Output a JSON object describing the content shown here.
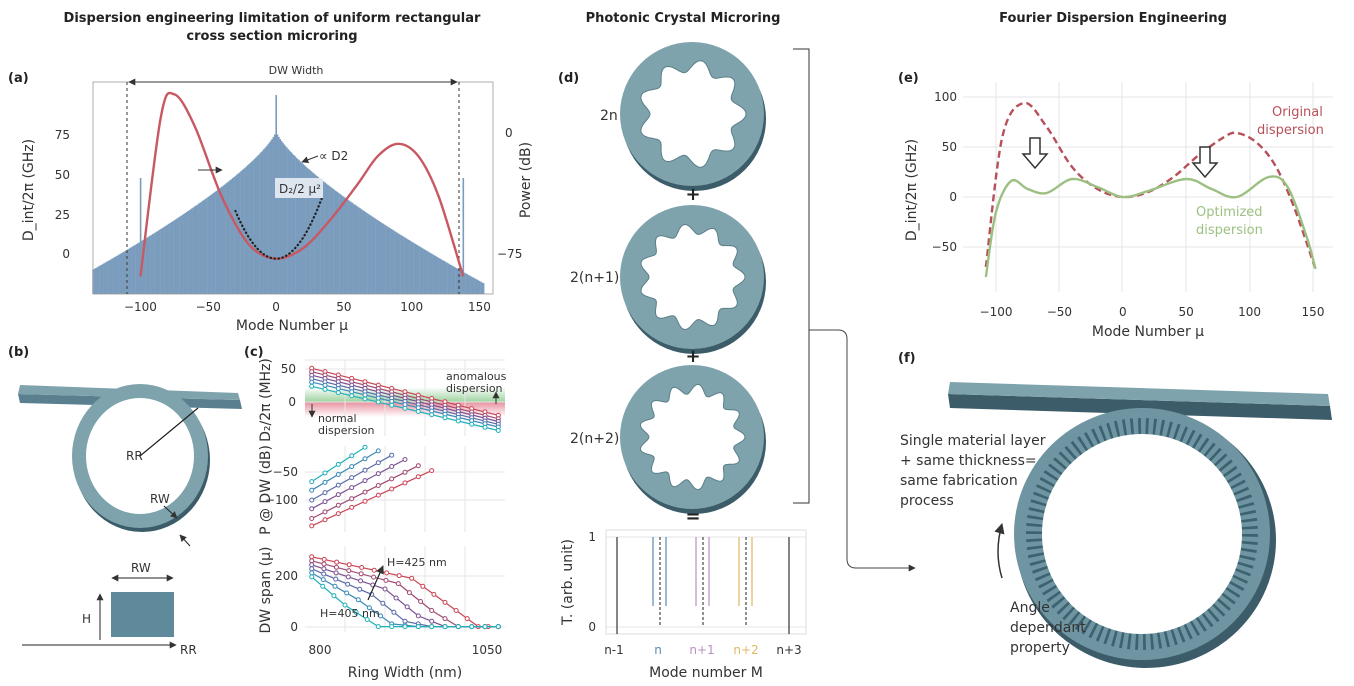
{
  "titles": {
    "left": [
      "Dispersion engineering limitation of uniform rectangular",
      "cross section microring"
    ],
    "middle": "Photonic Crystal Microring",
    "right": "Fourier Dispersion Engineering"
  },
  "labels": {
    "a": "(a)",
    "b": "(b)",
    "c": "(c)",
    "d": "(d)",
    "e": "(e)",
    "f": "(f)"
  },
  "panel_a": {
    "xlabel": "Mode Number μ",
    "ylabel_left": "D_int/2π (GHz)",
    "ylabel_right": "Power (dB)",
    "xticks": [
      "−100",
      "−50",
      "0",
      "50",
      "100",
      "150"
    ],
    "yticks_left": [
      "0",
      "25",
      "50",
      "75"
    ],
    "yticks_right": [
      "0",
      "−75"
    ],
    "dw_width": "DW Width",
    "prop_d2": "∝ D2",
    "d2_label": "D₂/2 μ²"
  },
  "panel_b": {
    "rr": "RR",
    "rw": "RW",
    "rw_bottom": "RW",
    "h": "H",
    "rr_bottom": "RR"
  },
  "panel_c": {
    "ylabel_top": "D₂/2π (MHz)",
    "ylabel_mid": "P @ DW (dB)",
    "ylabel_bot": "DW span (μ)",
    "xlabel": "Ring Width (nm)",
    "xticks": [
      "800",
      "1050"
    ],
    "yticks_top": [
      "50",
      "0"
    ],
    "yticks_mid": [
      "−50",
      "−100"
    ],
    "yticks_bot": [
      "200",
      "0"
    ],
    "anomalous": [
      "anomalous",
      "dispersion"
    ],
    "normal": [
      "normal",
      "dispersion"
    ],
    "h425": "H=425 nm",
    "h405": "H=405 nm",
    "series_colors": [
      "#cc4455",
      "#a04870",
      "#7a5090",
      "#5a6aa8",
      "#3a8ab8",
      "#20b0b8"
    ]
  },
  "panel_d": {
    "ring_labels": [
      "2n",
      "2(n+1)",
      "2(n+2)"
    ],
    "ring_label_colors": [
      "#5a88b8",
      "#b890c0",
      "#e0b860"
    ],
    "plus": "+",
    "equals": "=",
    "ylabel": "T. (arb. unit)",
    "xlabel": "Mode number M",
    "yticks": [
      "1",
      "0"
    ],
    "xticks": [
      "n-1",
      "n",
      "n+1",
      "n+2",
      "n+3"
    ],
    "xtick_colors": [
      "#333333",
      "#5a88b8",
      "#b890c0",
      "#e0b860",
      "#333333"
    ]
  },
  "panel_e": {
    "xlabel": "Mode Number μ",
    "ylabel": "D_int/2π (GHz)",
    "xticks": [
      "−100",
      "−50",
      "0",
      "50",
      "100",
      "150"
    ],
    "yticks": [
      "100",
      "50",
      "0",
      "−50"
    ],
    "original": [
      "Original",
      "dispersion"
    ],
    "optimized": [
      "Optimized",
      "dispersion"
    ],
    "original_color": "#b8505a",
    "optimized_color": "#9cc082"
  },
  "panel_f": {
    "text1": [
      "Single material layer",
      "+ same thickness=",
      "same fabrication",
      "process"
    ],
    "text2": [
      "Angle",
      "dependant",
      "property"
    ]
  },
  "colors": {
    "ring": "#7fa3ad",
    "bar": "#7b9cbd",
    "red": "#c85862"
  },
  "chart_data": [
    {
      "type": "line",
      "id": "a",
      "xlabel": "Mode Number μ",
      "ylabel": "D_int/2π (GHz)",
      "xlim": [
        -135,
        160
      ],
      "ylim": [
        -20,
        100
      ],
      "series": [
        {
          "values": [
            [
              -100,
              -10
            ],
            [
              -85,
              80
            ],
            [
              -75,
              93
            ],
            [
              -60,
              75
            ],
            [
              -40,
              35
            ],
            [
              -20,
              8
            ],
            [
              0,
              0
            ],
            [
              20,
              6
            ],
            [
              40,
              22
            ],
            [
              60,
              42
            ],
            [
              75,
              58
            ],
            [
              90,
              65
            ],
            [
              105,
              58
            ],
            [
              120,
              35
            ],
            [
              138,
              -10
            ]
          ]
        }
      ]
    },
    {
      "type": "line",
      "id": "e",
      "xlabel": "Mode Number μ",
      "ylabel": "D_int/2π (GHz)",
      "xlim": [
        -112,
        158
      ],
      "ylim": [
        -85,
        105
      ],
      "series": [
        {
          "name": "Original dispersion",
          "values": [
            [
              -108,
              -70
            ],
            [
              -95,
              60
            ],
            [
              -78,
              94
            ],
            [
              -60,
              70
            ],
            [
              -40,
              30
            ],
            [
              -20,
              8
            ],
            [
              0,
              0
            ],
            [
              20,
              5
            ],
            [
              40,
              20
            ],
            [
              60,
              42
            ],
            [
              80,
              60
            ],
            [
              90,
              64
            ],
            [
              105,
              55
            ],
            [
              120,
              32
            ],
            [
              135,
              -10
            ],
            [
              152,
              -72
            ]
          ]
        },
        {
          "name": "Optimized dispersion",
          "values": [
            [
              -108,
              -80
            ],
            [
              -100,
              -15
            ],
            [
              -88,
              16
            ],
            [
              -75,
              8
            ],
            [
              -60,
              4
            ],
            [
              -40,
              18
            ],
            [
              -20,
              10
            ],
            [
              0,
              0
            ],
            [
              20,
              6
            ],
            [
              50,
              18
            ],
            [
              70,
              8
            ],
            [
              90,
              0
            ],
            [
              115,
              20
            ],
            [
              130,
              10
            ],
            [
              145,
              -40
            ],
            [
              152,
              -72
            ]
          ]
        }
      ]
    },
    {
      "type": "line",
      "id": "c-top",
      "xlabel": "Ring Width (nm)",
      "ylabel": "D₂/2π (MHz)",
      "xlim": [
        790,
        1090
      ],
      "ylim": [
        -50,
        60
      ],
      "series": [
        {
          "values": [
            [
              800,
              48
            ],
            [
              1080,
              -20
            ]
          ]
        },
        {
          "values": [
            [
              800,
              43
            ],
            [
              1080,
              -25
            ]
          ]
        },
        {
          "values": [
            [
              800,
              38
            ],
            [
              1080,
              -29
            ]
          ]
        },
        {
          "values": [
            [
              800,
              33
            ],
            [
              1080,
              -33
            ]
          ]
        },
        {
          "values": [
            [
              800,
              28
            ],
            [
              1080,
              -37
            ]
          ]
        },
        {
          "values": [
            [
              800,
              22
            ],
            [
              1080,
              -42
            ]
          ]
        }
      ]
    },
    {
      "type": "line",
      "id": "c-mid",
      "xlabel": "Ring Width (nm)",
      "ylabel": "P @ DW (dB)",
      "xlim": [
        790,
        1090
      ],
      "ylim": [
        -140,
        0
      ],
      "series": [
        {
          "values": [
            [
              800,
              -130
            ],
            [
              980,
              -40
            ]
          ]
        },
        {
          "values": [
            [
              800,
              -118
            ],
            [
              960,
              -32
            ]
          ]
        },
        {
          "values": [
            [
              800,
              -102
            ],
            [
              940,
              -22
            ]
          ]
        },
        {
          "values": [
            [
              800,
              -88
            ],
            [
              920,
              -15
            ]
          ]
        },
        {
          "values": [
            [
              800,
              -72
            ],
            [
              900,
              -8
            ]
          ]
        },
        {
          "values": [
            [
              800,
              -58
            ],
            [
              880,
              -2
            ]
          ]
        }
      ]
    },
    {
      "type": "line",
      "id": "c-bot",
      "xlabel": "Ring Width (nm)",
      "ylabel": "DW span (μ)",
      "xlim": [
        790,
        1090
      ],
      "ylim": [
        -20,
        300
      ],
      "series": [
        {
          "values": [
            [
              800,
              260
            ],
            [
              950,
              180
            ],
            [
              1000,
              90
            ],
            [
              1050,
              0
            ],
            [
              1080,
              0
            ]
          ]
        },
        {
          "values": [
            [
              800,
              245
            ],
            [
              930,
              160
            ],
            [
              980,
              60
            ],
            [
              1020,
              0
            ],
            [
              1080,
              0
            ]
          ]
        },
        {
          "values": [
            [
              800,
              230
            ],
            [
              910,
              140
            ],
            [
              960,
              40
            ],
            [
              1000,
              0
            ],
            [
              1080,
              0
            ]
          ]
        },
        {
          "values": [
            [
              800,
              215
            ],
            [
              890,
              120
            ],
            [
              940,
              20
            ],
            [
              980,
              0
            ],
            [
              1080,
              0
            ]
          ]
        },
        {
          "values": [
            [
              800,
              200
            ],
            [
              870,
              100
            ],
            [
              920,
              10
            ],
            [
              960,
              0
            ],
            [
              1080,
              0
            ]
          ]
        },
        {
          "values": [
            [
              800,
              185
            ],
            [
              850,
              80
            ],
            [
              900,
              0
            ],
            [
              940,
              0
            ],
            [
              1080,
              0
            ]
          ]
        }
      ]
    }
  ]
}
